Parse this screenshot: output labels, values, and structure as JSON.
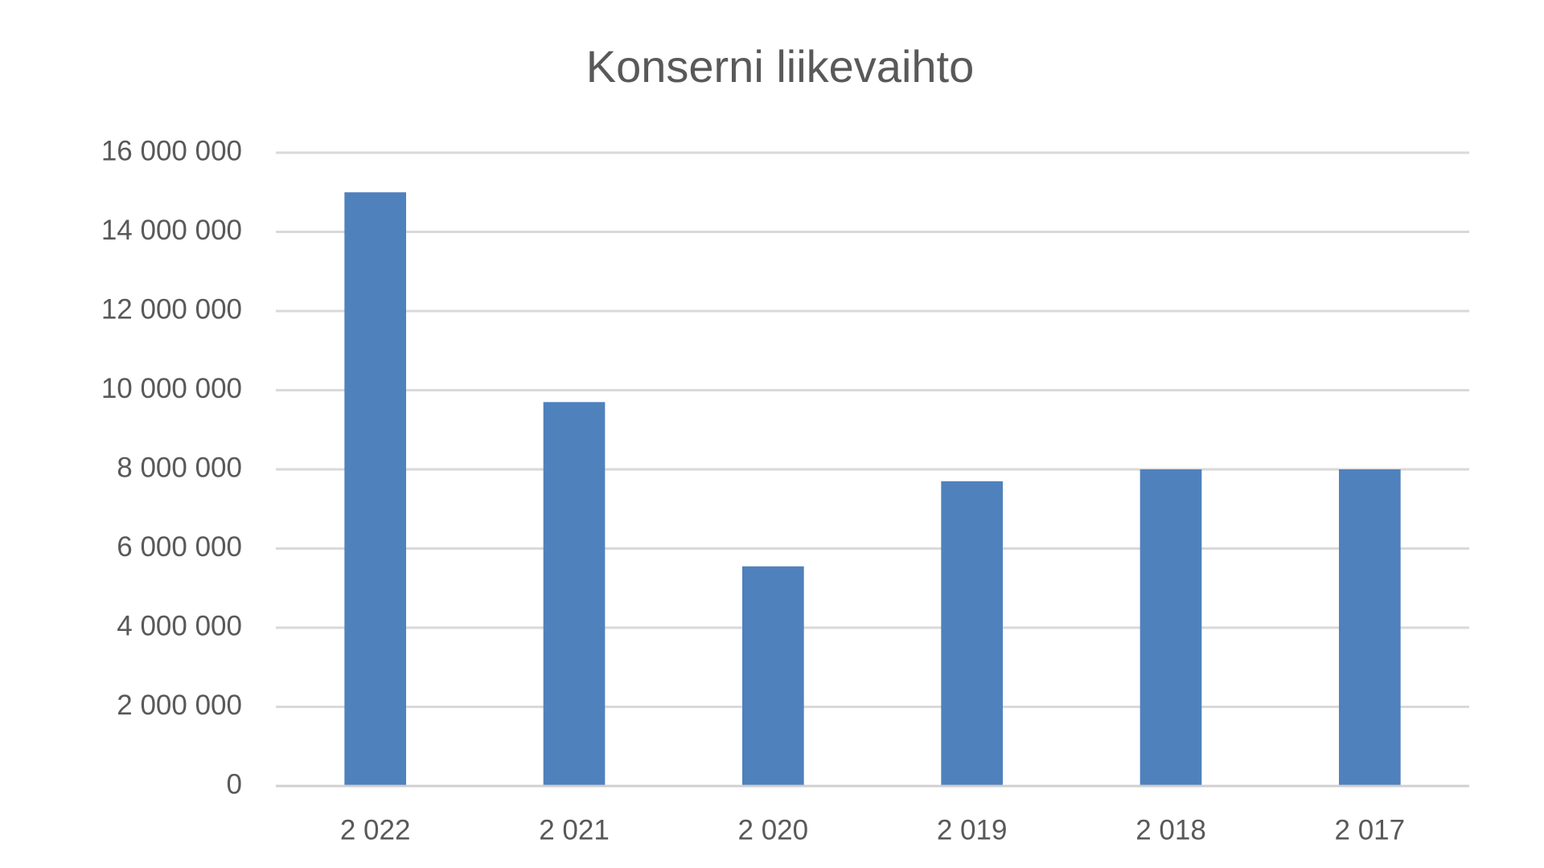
{
  "chart_data": {
    "type": "bar",
    "title": "Konserni liikevaihto",
    "categories": [
      "2 022",
      "2 021",
      "2 020",
      "2 019",
      "2 018",
      "2 017"
    ],
    "values": [
      15000000,
      9700000,
      5550000,
      7700000,
      8000000,
      8000000
    ],
    "color": "#4f81bd",
    "ylim": [
      0,
      16000000
    ],
    "yticks": [
      0,
      {
        "value": 2000000,
        "label": "2 000 000"
      },
      {
        "value": 4000000,
        "label": "4 000 000"
      },
      {
        "value": 6000000,
        "label": "6 000 000"
      },
      {
        "value": 8000000,
        "label": "8 000 000"
      },
      {
        "value": 10000000,
        "label": "10 000 000"
      },
      {
        "value": 12000000,
        "label": "12 000 000"
      },
      {
        "value": 14000000,
        "label": "14 000 000"
      },
      {
        "value": 16000000,
        "label": "16 000 000"
      }
    ],
    "grid": true
  }
}
